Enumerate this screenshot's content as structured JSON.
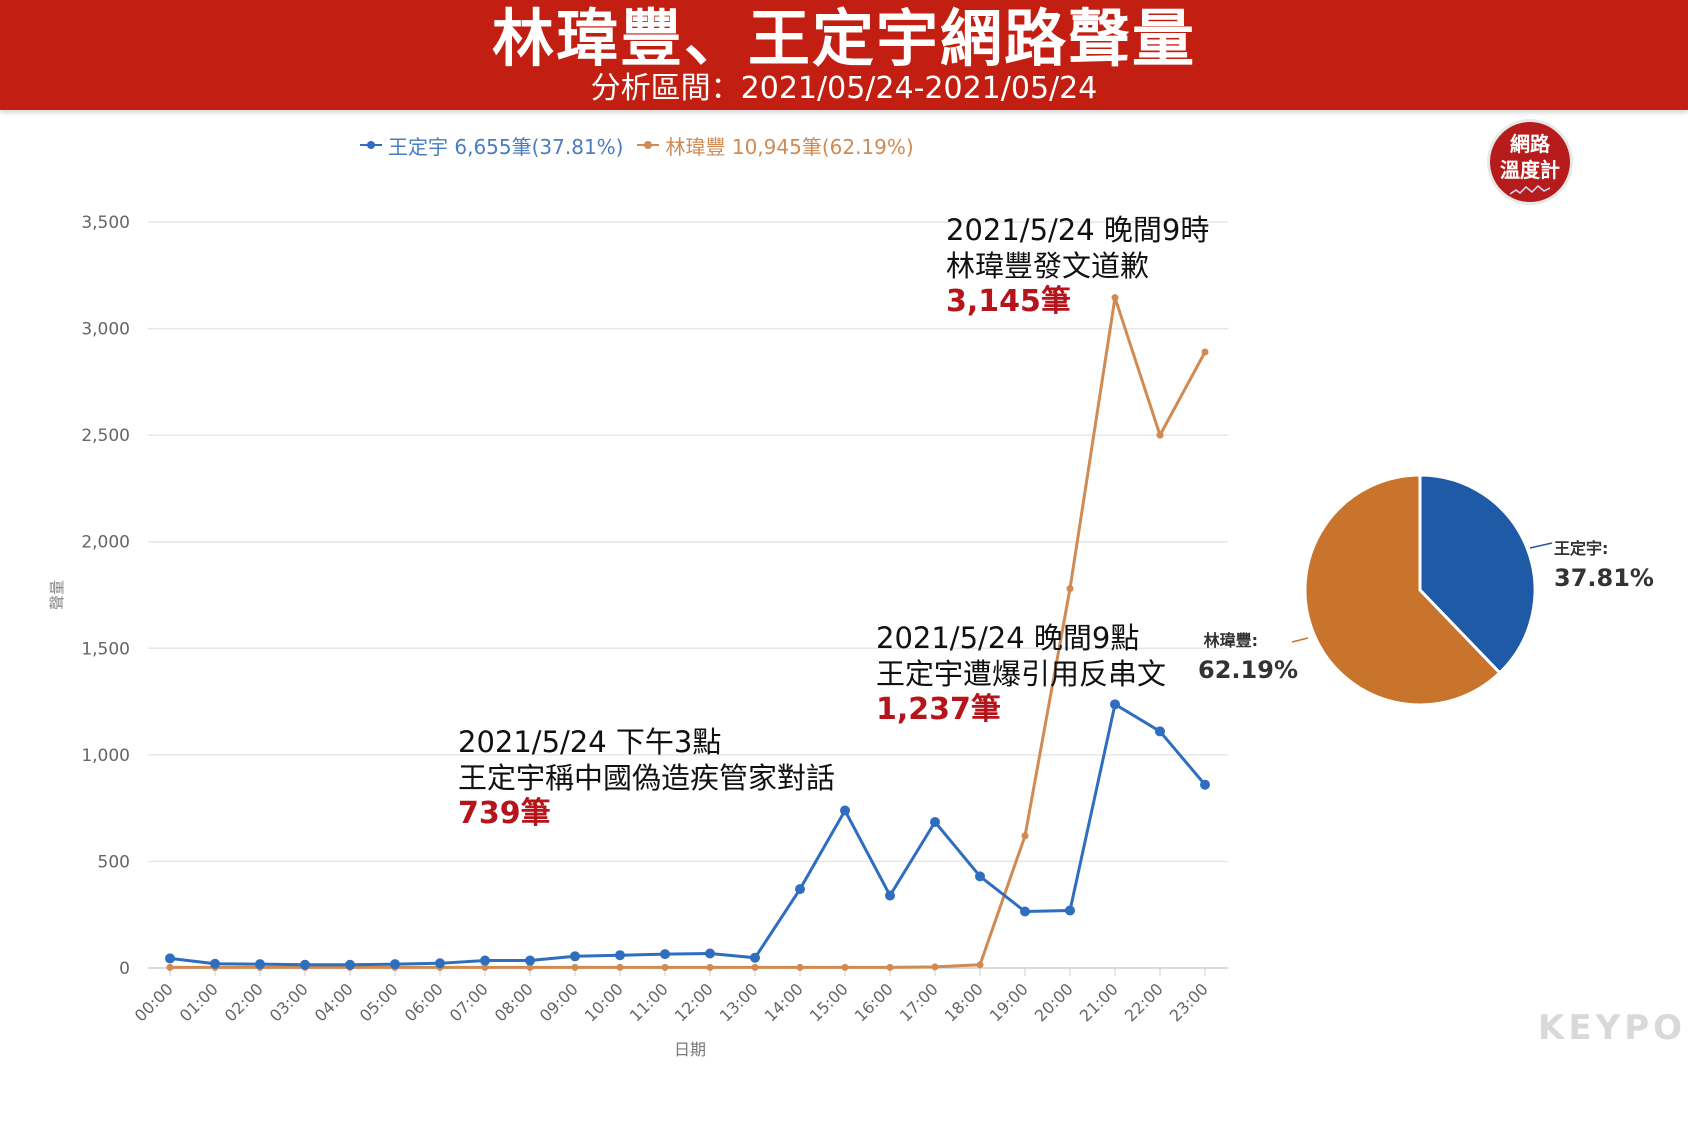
{
  "header": {
    "title": "林瑋豐、王定宇網路聲量",
    "subtitle": "分析區間：2021/05/24-2021/05/24"
  },
  "badge": {
    "line1": "網路",
    "line2": "溫度計"
  },
  "watermark": "KEYPO",
  "colors": {
    "header_bg": "#c21f12",
    "wang": "#1f5aa6",
    "lin": "#c8742c",
    "annotation_count": "#b5141a"
  },
  "legend": {
    "wang": "王定宇 6,655筆(37.81%)",
    "lin": "林瑋豐 10,945筆(62.19%)"
  },
  "annotations": [
    {
      "line1": "2021/5/24 晚間9時",
      "line2": "林瑋豐發文道歉",
      "count": "3,145筆"
    },
    {
      "line1": "2021/5/24  晚間9點",
      "line2": "王定宇遭爆引用反串文",
      "count": "1,237筆"
    },
    {
      "line1": "2021/5/24 下午3點",
      "line2": "王定宇稱中國偽造疾管家對話",
      "count": "739筆"
    }
  ],
  "chart_data": [
    {
      "type": "line",
      "xlabel": "日期",
      "ylabel": "聲量",
      "ylim": [
        0,
        3500
      ],
      "yticks": [
        0,
        500,
        1000,
        1500,
        2000,
        2500,
        3000,
        3500
      ],
      "ytick_labels": [
        "0",
        "500",
        "1,000",
        "1,500",
        "2,000",
        "2,500",
        "3,000",
        "3,500"
      ],
      "grid": true,
      "legend_position": "top",
      "x": [
        "00:00",
        "01:00",
        "02:00",
        "03:00",
        "04:00",
        "05:00",
        "06:00",
        "07:00",
        "08:00",
        "09:00",
        "10:00",
        "11:00",
        "12:00",
        "13:00",
        "14:00",
        "15:00",
        "16:00",
        "17:00",
        "18:00",
        "19:00",
        "20:00",
        "21:00",
        "22:00",
        "23:00"
      ],
      "series": [
        {
          "name": "王定宇",
          "color": "#2f6dbf",
          "values": [
            45,
            20,
            18,
            15,
            15,
            18,
            22,
            35,
            35,
            55,
            60,
            65,
            68,
            48,
            370,
            739,
            340,
            685,
            430,
            265,
            270,
            1237,
            1110,
            860
          ]
        },
        {
          "name": "林瑋豐",
          "color": "#d08a52",
          "values": [
            3,
            3,
            3,
            3,
            3,
            3,
            3,
            3,
            3,
            3,
            3,
            3,
            3,
            3,
            3,
            3,
            3,
            5,
            15,
            620,
            1780,
            3145,
            2500,
            2890
          ]
        }
      ]
    },
    {
      "type": "pie",
      "slices": [
        {
          "name": "王定宇:",
          "value": 37.81,
          "label": "37.81%",
          "color": "#1f5aa6"
        },
        {
          "name": "林瑋豐:",
          "value": 62.19,
          "label": "62.19%",
          "color": "#c8742c"
        }
      ]
    }
  ]
}
